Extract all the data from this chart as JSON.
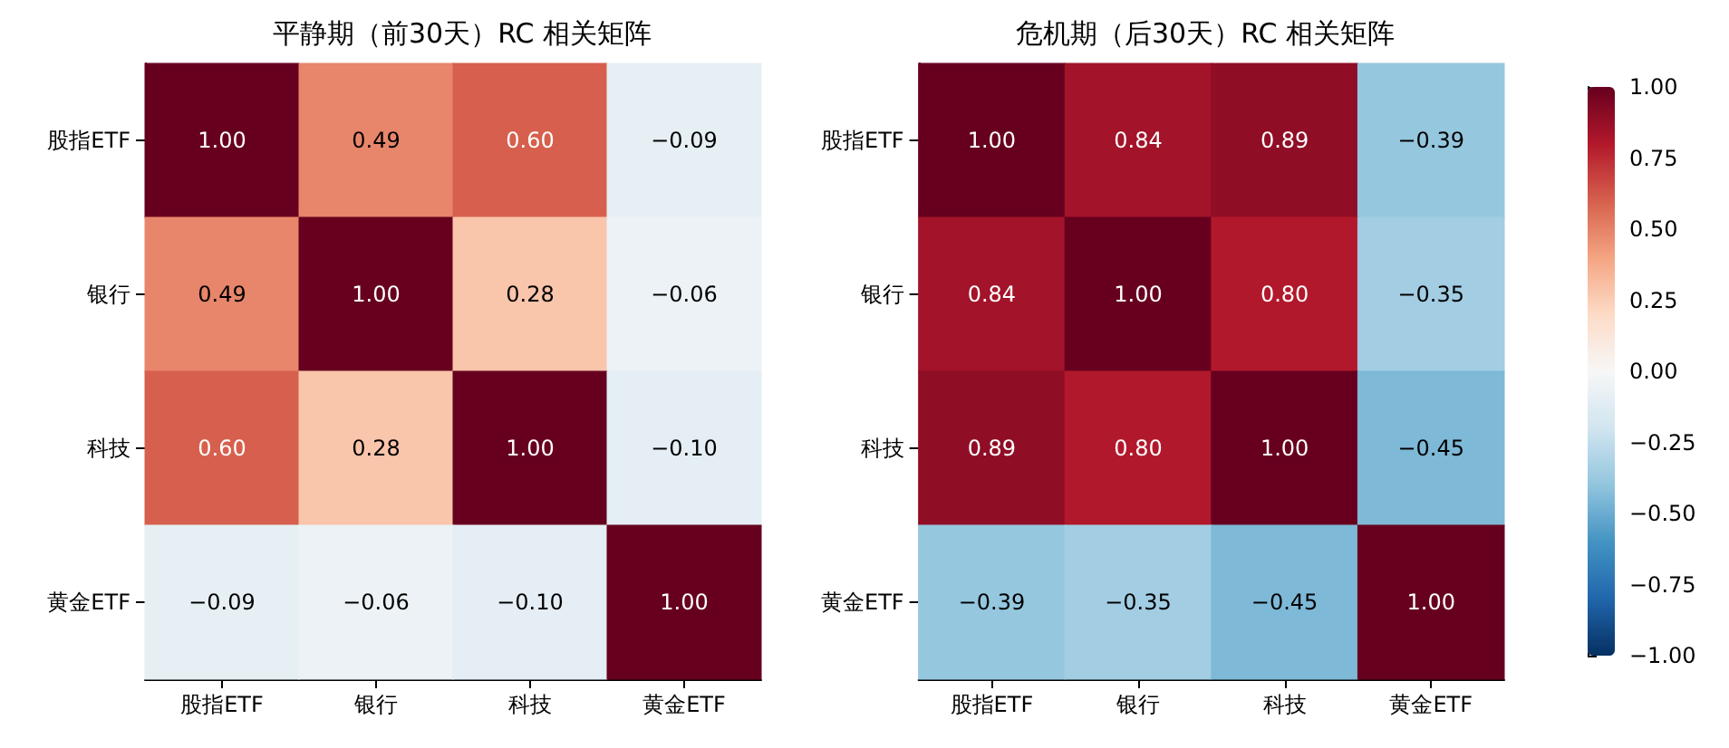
{
  "chart_data": [
    {
      "type": "heatmap",
      "title": "平静期（前30天）RC 相关矩阵",
      "categories": [
        "股指ETF",
        "银行",
        "科技",
        "黄金ETF"
      ],
      "y_categories": [
        "股指ETF",
        "银行",
        "科技",
        "黄金ETF"
      ],
      "cells": [
        [
          1.0,
          0.49,
          0.6,
          -0.09
        ],
        [
          0.49,
          1.0,
          0.28,
          -0.06
        ],
        [
          0.6,
          0.28,
          1.0,
          -0.1
        ],
        [
          -0.09,
          -0.06,
          -0.1,
          1.0
        ]
      ],
      "cell_labels": [
        [
          "1.00",
          "0.49",
          "0.60",
          "−0.09"
        ],
        [
          "0.49",
          "1.00",
          "0.28",
          "−0.06"
        ],
        [
          "0.60",
          "0.28",
          "1.00",
          "−0.10"
        ],
        [
          "−0.09",
          "−0.06",
          "−0.10",
          "1.00"
        ]
      ]
    },
    {
      "type": "heatmap",
      "title": "危机期（后30天）RC 相关矩阵",
      "categories": [
        "股指ETF",
        "银行",
        "科技",
        "黄金ETF"
      ],
      "y_categories": [
        "股指ETF",
        "银行",
        "科技",
        "黄金ETF"
      ],
      "cells": [
        [
          1.0,
          0.84,
          0.89,
          -0.39
        ],
        [
          0.84,
          1.0,
          0.8,
          -0.35
        ],
        [
          0.89,
          0.8,
          1.0,
          -0.45
        ],
        [
          -0.39,
          -0.35,
          -0.45,
          1.0
        ]
      ],
      "cell_labels": [
        [
          "1.00",
          "0.84",
          "0.89",
          "−0.39"
        ],
        [
          "0.84",
          "1.00",
          "0.80",
          "−0.35"
        ],
        [
          "0.89",
          "0.80",
          "1.00",
          "−0.45"
        ],
        [
          "−0.39",
          "−0.35",
          "−0.45",
          "1.00"
        ]
      ],
      "clim": [
        -1,
        1
      ],
      "cticks": [
        {
          "value": -1,
          "label": "−1.00"
        },
        {
          "value": -0.75,
          "label": "−0.75"
        },
        {
          "value": -0.5,
          "label": "−0.50"
        },
        {
          "value": -0.25,
          "label": "−0.25"
        },
        {
          "value": 0,
          "label": "0.00"
        },
        {
          "value": 0.25,
          "label": "0.25"
        },
        {
          "value": 0.5,
          "label": "0.50"
        },
        {
          "value": 0.75,
          "label": "0.75"
        },
        {
          "value": 1,
          "label": "1.00"
        }
      ]
    }
  ]
}
